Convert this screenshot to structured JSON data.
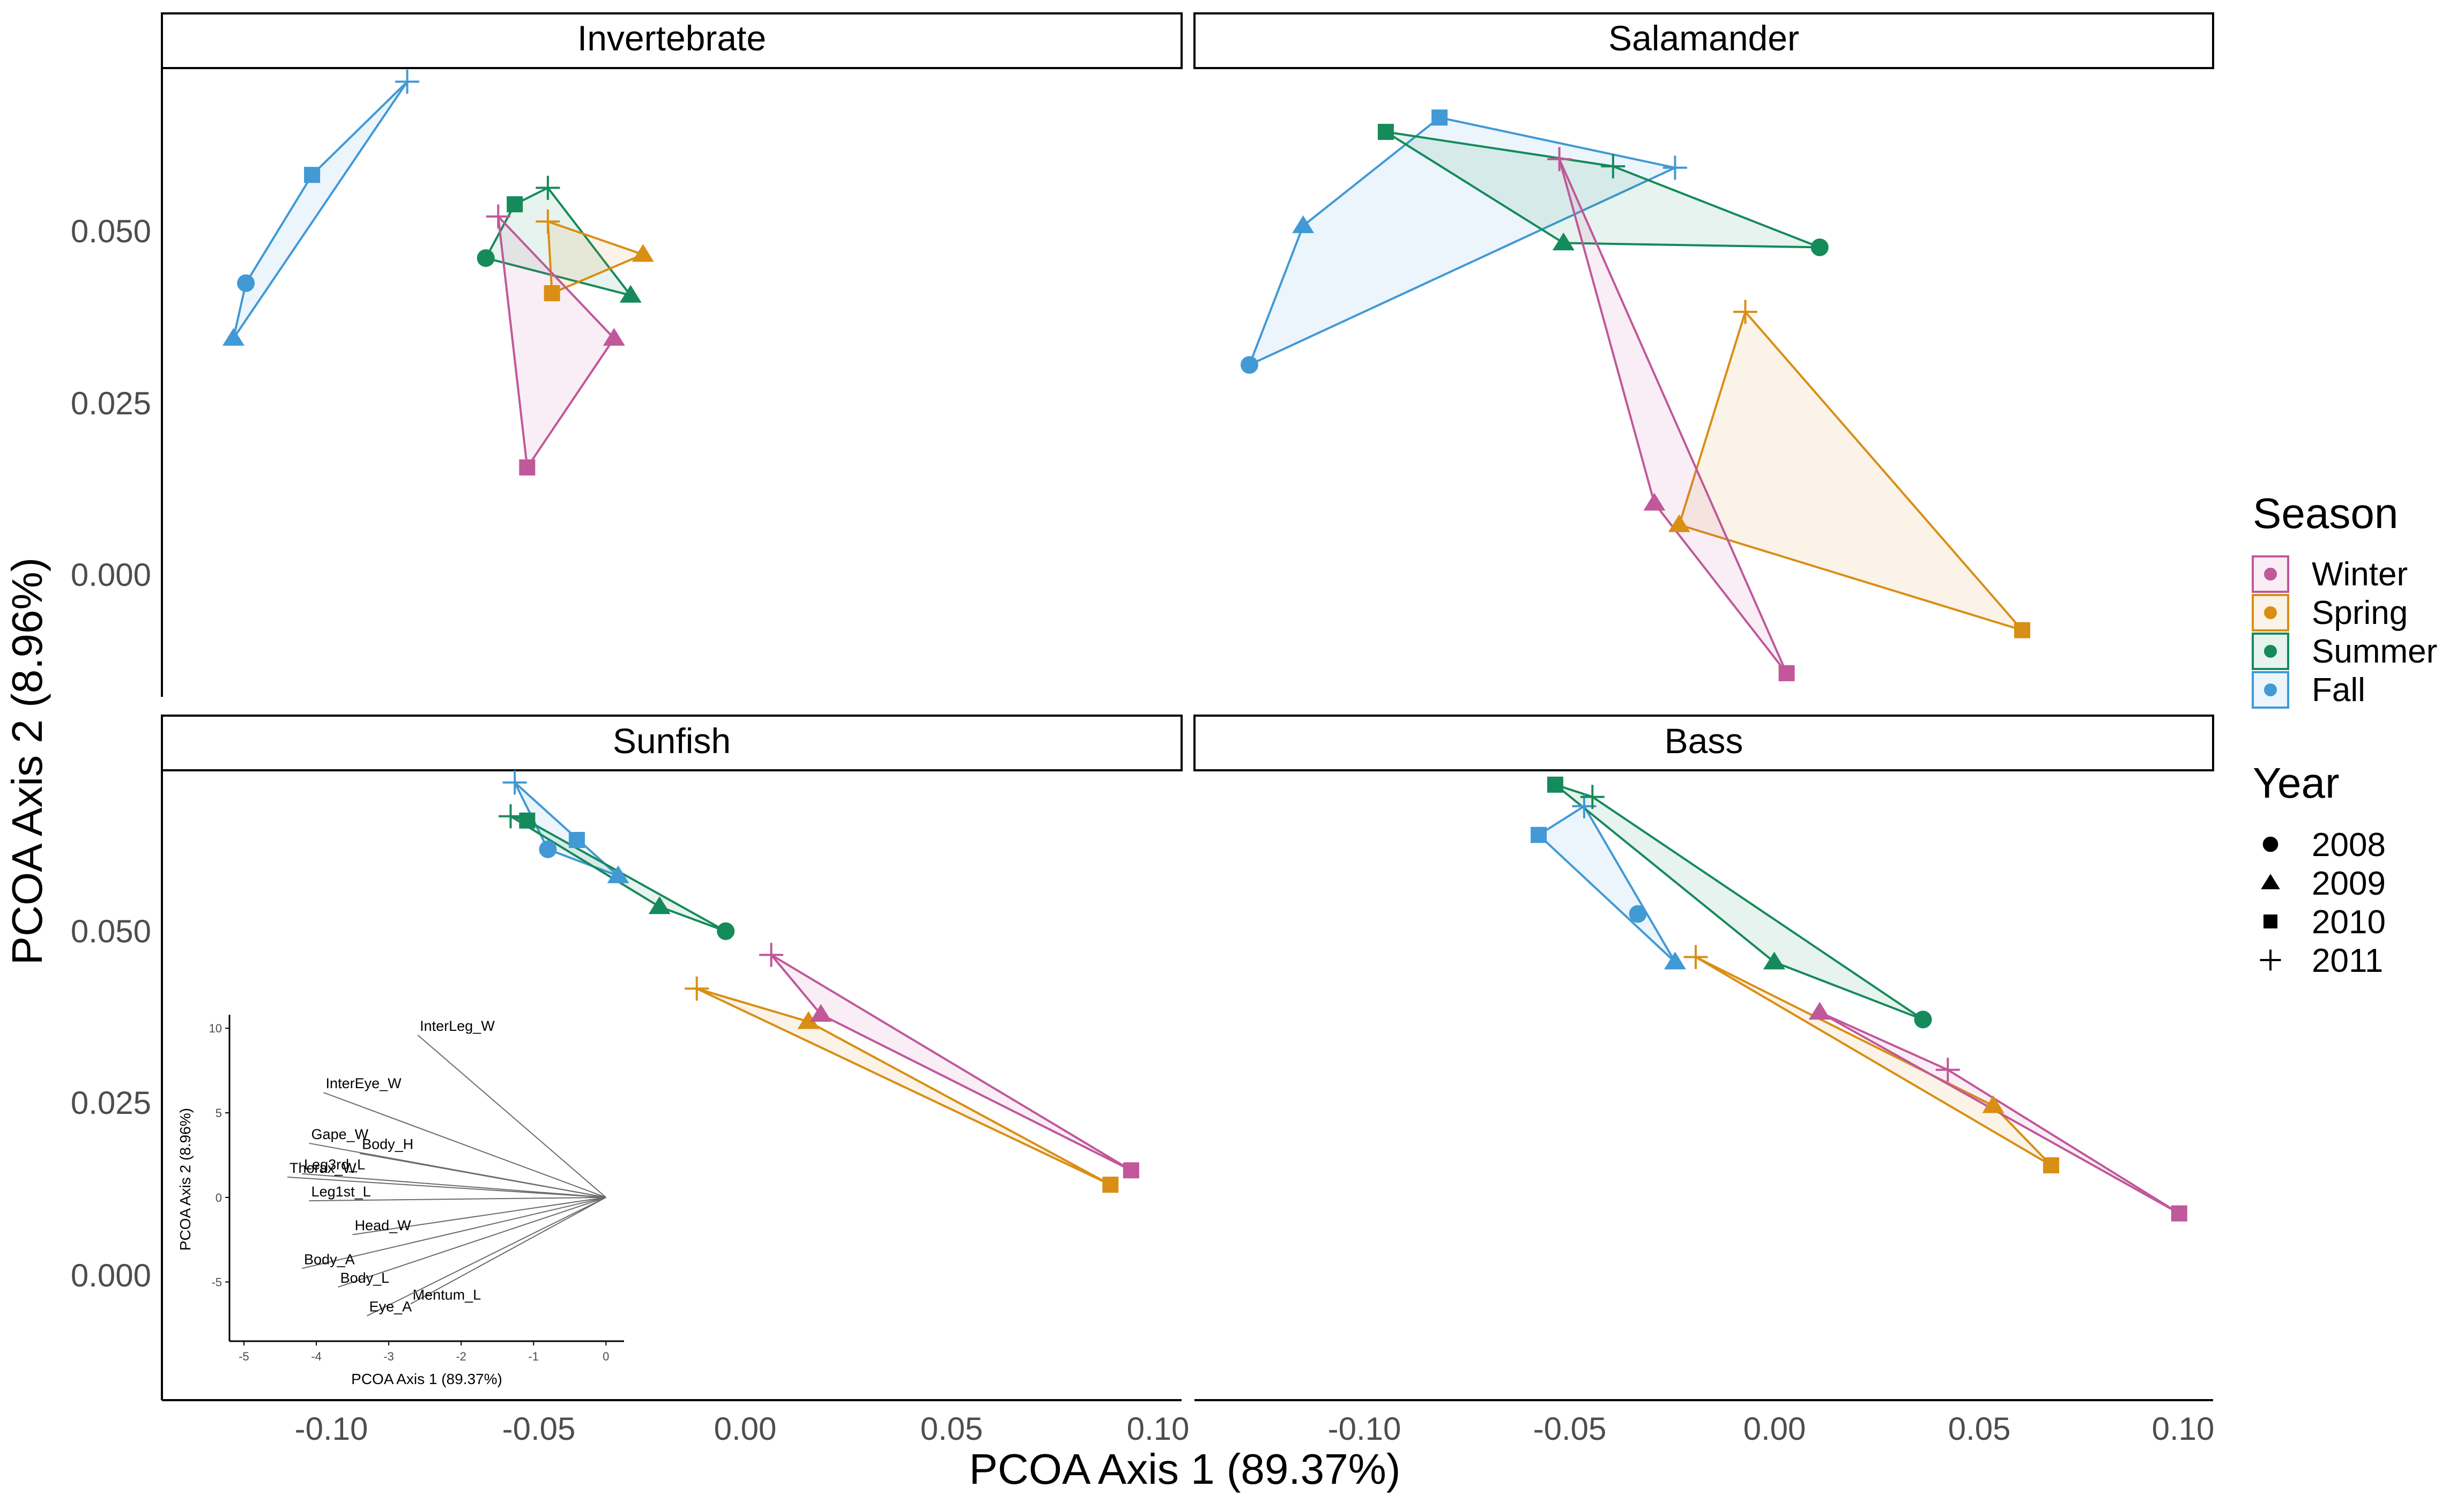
{
  "chart_data": {
    "type": "scatter",
    "xlabel": "PCOA Axis 1 (89.37%)",
    "ylabel": "PCOA Axis 2 (8.96%)",
    "x_ticks": [
      "-0.10",
      "-0.05",
      "0.00",
      "0.05",
      "0.10"
    ],
    "y_ticks": [
      "0.000",
      "0.025",
      "0.050"
    ],
    "xlim": [
      -0.1418,
      0.1047
    ],
    "ylim": [
      -0.0175,
      0.0702
    ],
    "grid": false,
    "legend": {
      "position": "right",
      "season_title": "Season",
      "seasons": [
        {
          "name": "Winter",
          "color": "#C0589A"
        },
        {
          "name": "Spring",
          "color": "#D98E14"
        },
        {
          "name": "Summer",
          "color": "#158A5A"
        },
        {
          "name": "Fall",
          "color": "#4199D6"
        }
      ],
      "year_title": "Year",
      "years": [
        {
          "name": "2008",
          "shape": "circle"
        },
        {
          "name": "2009",
          "shape": "triangle"
        },
        {
          "name": "2010",
          "shape": "square"
        },
        {
          "name": "2011",
          "shape": "plus"
        }
      ]
    },
    "panels": [
      {
        "title": "Invertebrate",
        "groups": [
          {
            "season": "Fall",
            "points": [
              [
                -0.1215,
                0.0402,
                "2008"
              ],
              [
                -0.1245,
                0.0325,
                "2009"
              ],
              [
                -0.1055,
                0.0553,
                "2010"
              ],
              [
                -0.0825,
                0.0683,
                "2011"
              ]
            ]
          },
          {
            "season": "Summer",
            "points": [
              [
                -0.0635,
                0.0437,
                "2008"
              ],
              [
                -0.0285,
                0.0385,
                "2009"
              ],
              [
                -0.0565,
                0.0512,
                "2010"
              ],
              [
                -0.0485,
                0.0535,
                "2011"
              ]
            ]
          },
          {
            "season": "Spring",
            "points": [
              [
                -0.0255,
                0.0442,
                "2009"
              ],
              [
                -0.0475,
                0.0388,
                "2010"
              ],
              [
                -0.0485,
                0.0488,
                "2011"
              ]
            ]
          },
          {
            "season": "Winter",
            "points": [
              [
                -0.0325,
                0.0325,
                "2009"
              ],
              [
                -0.0535,
                0.0145,
                "2010"
              ],
              [
                -0.0605,
                0.0495,
                "2011"
              ]
            ]
          }
        ]
      },
      {
        "title": "Salamander",
        "groups": [
          {
            "season": "Fall",
            "points": [
              [
                -0.1285,
                0.0288,
                "2008"
              ],
              [
                -0.1155,
                0.0482,
                "2009"
              ],
              [
                -0.0825,
                0.0633,
                "2010"
              ],
              [
                -0.0255,
                0.0563,
                "2011"
              ]
            ]
          },
          {
            "season": "Summer",
            "points": [
              [
                0.0095,
                0.0452,
                "2008"
              ],
              [
                -0.0525,
                0.0458,
                "2009"
              ],
              [
                -0.0955,
                0.0613,
                "2010"
              ],
              [
                -0.0405,
                0.0565,
                "2011"
              ]
            ]
          },
          {
            "season": "Spring",
            "points": [
              [
                -0.0245,
                0.0065,
                "2009"
              ],
              [
                0.0585,
                -0.0082,
                "2010"
              ],
              [
                -0.0085,
                0.0362,
                "2011"
              ]
            ]
          },
          {
            "season": "Winter",
            "points": [
              [
                -0.0305,
                0.0095,
                "2009"
              ],
              [
                0.0015,
                -0.0142,
                "2010"
              ],
              [
                -0.0535,
                0.0575,
                "2011"
              ]
            ]
          }
        ]
      },
      {
        "title": "Sunfish",
        "groups": [
          {
            "season": "Fall",
            "points": [
              [
                -0.0485,
                0.0592,
                "2008"
              ],
              [
                -0.0315,
                0.0555,
                "2009"
              ],
              [
                -0.0415,
                0.0605,
                "2010"
              ],
              [
                -0.0565,
                0.0685,
                "2011"
              ]
            ]
          },
          {
            "season": "Summer",
            "points": [
              [
                -0.0055,
                0.0478,
                "2008"
              ],
              [
                -0.0215,
                0.0512,
                "2009"
              ],
              [
                -0.0535,
                0.0632,
                "2010"
              ],
              [
                -0.0575,
                0.0638,
                "2011"
              ]
            ]
          },
          {
            "season": "Spring",
            "points": [
              [
                0.0145,
                0.0352,
                "2009"
              ],
              [
                0.0875,
                0.0125,
                "2010"
              ],
              [
                -0.0125,
                0.0398,
                "2011"
              ]
            ]
          },
          {
            "season": "Winter",
            "points": [
              [
                0.0175,
                0.0362,
                "2009"
              ],
              [
                0.0925,
                0.0145,
                "2010"
              ],
              [
                0.0055,
                0.0445,
                "2011"
              ]
            ]
          }
        ]
      },
      {
        "title": "Bass",
        "groups": [
          {
            "season": "Fall",
            "points": [
              [
                -0.0345,
                0.0502,
                "2008"
              ],
              [
                -0.0255,
                0.0435,
                "2009"
              ],
              [
                -0.0585,
                0.0612,
                "2010"
              ],
              [
                -0.0475,
                0.0652,
                "2011"
              ]
            ]
          },
          {
            "season": "Summer",
            "points": [
              [
                0.0345,
                0.0355,
                "2008"
              ],
              [
                -0.0015,
                0.0435,
                "2009"
              ],
              [
                -0.0545,
                0.0682,
                "2010"
              ],
              [
                -0.0455,
                0.0665,
                "2011"
              ]
            ]
          },
          {
            "season": "Spring",
            "points": [
              [
                0.0515,
                0.0235,
                "2009"
              ],
              [
                0.0655,
                0.0152,
                "2010"
              ],
              [
                -0.0205,
                0.0442,
                "2011"
              ]
            ]
          },
          {
            "season": "Winter",
            "points": [
              [
                0.0095,
                0.0365,
                "2009"
              ],
              [
                0.0965,
                0.0085,
                "2010"
              ],
              [
                0.0405,
                0.0285,
                "2011"
              ]
            ]
          }
        ]
      }
    ],
    "inset": {
      "type": "biplot",
      "xlabel": "PCOA Axis 1 (89.37%)",
      "ylabel": "PCOA Axis 2 (8.96%)",
      "x_ticks": [
        "-5",
        "-4",
        "-3",
        "-2",
        "-1",
        "0"
      ],
      "y_ticks": [
        "-5",
        "0",
        "5",
        "10"
      ],
      "xlim": [
        -5.2,
        0.25
      ],
      "ylim": [
        -8.5,
        10.8
      ],
      "vectors": [
        {
          "label": "InterLeg_W",
          "x": -2.6,
          "y": 9.6
        },
        {
          "label": "InterEye_W",
          "x": -3.9,
          "y": 6.2
        },
        {
          "label": "Gape_W",
          "x": -4.1,
          "y": 3.2
        },
        {
          "label": "Body_H",
          "x": -3.4,
          "y": 2.6
        },
        {
          "label": "Leg3rd_L",
          "x": -4.2,
          "y": 1.4
        },
        {
          "label": "Thorax_W",
          "x": -4.4,
          "y": 1.2
        },
        {
          "label": "Leg1st_L",
          "x": -4.1,
          "y": -0.2
        },
        {
          "label": "Head_W",
          "x": -3.5,
          "y": -2.2
        },
        {
          "label": "Body_A",
          "x": -4.2,
          "y": -4.2
        },
        {
          "label": "Body_L",
          "x": -3.7,
          "y": -5.3
        },
        {
          "label": "Mentum_L",
          "x": -2.7,
          "y": -6.3
        },
        {
          "label": "Eye_A",
          "x": -3.3,
          "y": -7.0
        }
      ]
    }
  }
}
